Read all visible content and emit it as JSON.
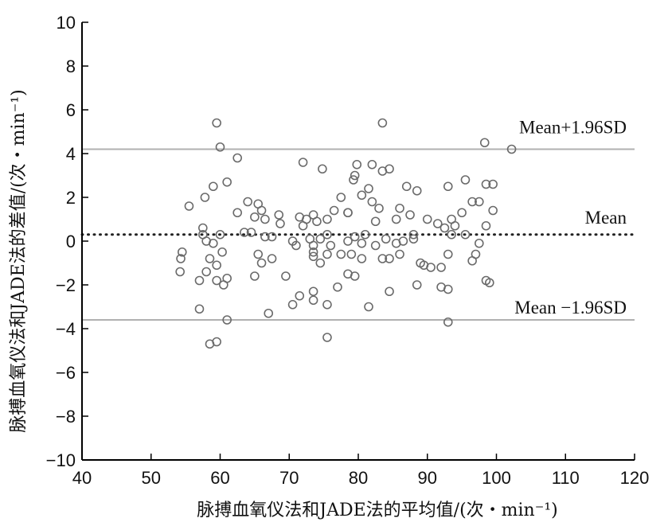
{
  "chart_data": {
    "type": "scatter",
    "title": "",
    "xlabel": "脉搏血氧仪法和JADE法的平均值/(次・min⁻¹)",
    "ylabel": "脉搏血氧仪法和JADE法的差值/(次・min⁻¹)",
    "xlim": [
      40,
      120
    ],
    "ylim": [
      -10,
      10
    ],
    "x_ticks": [
      "40",
      "50",
      "60",
      "70",
      "80",
      "90",
      "100",
      "110",
      "120"
    ],
    "y_ticks": [
      "10",
      "8",
      "6",
      "4",
      "2",
      "0",
      "−2",
      "−4",
      "−6",
      "−8",
      "−10"
    ],
    "grid": false,
    "reference_lines": [
      {
        "label": "Mean+1.96SD",
        "y": 4.2,
        "style": "solid"
      },
      {
        "label": "Mean",
        "y": 0.3,
        "style": "dotted"
      },
      {
        "label": "Mean −1.96SD",
        "y": -3.6,
        "style": "solid"
      }
    ],
    "points": [
      [
        59.5,
        5.4
      ],
      [
        60,
        4.3
      ],
      [
        62.5,
        3.8
      ],
      [
        83.5,
        5.4
      ],
      [
        98.3,
        4.5
      ],
      [
        102.2,
        4.2
      ],
      [
        72,
        3.6
      ],
      [
        74.8,
        3.3
      ],
      [
        79.8,
        3.5
      ],
      [
        82,
        3.5
      ],
      [
        79.5,
        3.0
      ],
      [
        79.3,
        2.8
      ],
      [
        83.5,
        3.2
      ],
      [
        84.5,
        3.3
      ],
      [
        95.5,
        2.8
      ],
      [
        99.5,
        2.6
      ],
      [
        98.5,
        2.6
      ],
      [
        93,
        2.5
      ],
      [
        61,
        2.7
      ],
      [
        59,
        2.5
      ],
      [
        57.8,
        2.0
      ],
      [
        55.5,
        1.6
      ],
      [
        64,
        1.8
      ],
      [
        65.5,
        1.7
      ],
      [
        66,
        1.4
      ],
      [
        65,
        1.1
      ],
      [
        66.5,
        1.0
      ],
      [
        62.5,
        1.3
      ],
      [
        68.5,
        1.2
      ],
      [
        68.7,
        0.8
      ],
      [
        71.5,
        1.1
      ],
      [
        72.5,
        1.0
      ],
      [
        73.5,
        1.2
      ],
      [
        72,
        0.7
      ],
      [
        74,
        0.9
      ],
      [
        76.5,
        1.4
      ],
      [
        75.5,
        1.0
      ],
      [
        77.5,
        2.0
      ],
      [
        78.5,
        1.3
      ],
      [
        78.5,
        1.3
      ],
      [
        80.5,
        2.1
      ],
      [
        81.5,
        2.4
      ],
      [
        82,
        1.8
      ],
      [
        83,
        1.5
      ],
      [
        82.5,
        0.9
      ],
      [
        86,
        1.5
      ],
      [
        85.5,
        1.0
      ],
      [
        87,
        2.5
      ],
      [
        88.5,
        2.3
      ],
      [
        87.5,
        1.2
      ],
      [
        90,
        1.0
      ],
      [
        91.5,
        0.8
      ],
      [
        92.5,
        0.6
      ],
      [
        93.5,
        1.0
      ],
      [
        95,
        1.3
      ],
      [
        96.5,
        1.8
      ],
      [
        97.5,
        1.8
      ],
      [
        99.5,
        1.4
      ],
      [
        98.5,
        0.7
      ],
      [
        57.5,
        0.6
      ],
      [
        57.5,
        0.3
      ],
      [
        58,
        0
      ],
      [
        59,
        -0.1
      ],
      [
        60,
        0.3
      ],
      [
        63.5,
        0.4
      ],
      [
        64.5,
        0.4
      ],
      [
        66.5,
        0.2
      ],
      [
        67.5,
        0.2
      ],
      [
        70.5,
        0
      ],
      [
        71,
        -0.2
      ],
      [
        73,
        0.1
      ],
      [
        73.5,
        -0.2
      ],
      [
        74.5,
        0.1
      ],
      [
        75.5,
        0.3
      ],
      [
        76,
        -0.2
      ],
      [
        78.5,
        0
      ],
      [
        79.5,
        0.2
      ],
      [
        80.5,
        -0.1
      ],
      [
        81,
        0.3
      ],
      [
        82.5,
        -0.2
      ],
      [
        84,
        0.1
      ],
      [
        85.5,
        -0.1
      ],
      [
        86.5,
        0
      ],
      [
        88,
        0.3
      ],
      [
        88,
        0.1
      ],
      [
        93.5,
        0.3
      ],
      [
        94,
        0.7
      ],
      [
        95.5,
        0.3
      ],
      [
        97.5,
        -0.1
      ],
      [
        54.5,
        -0.5
      ],
      [
        54.3,
        -0.8
      ],
      [
        54.2,
        -1.4
      ],
      [
        58.5,
        -0.8
      ],
      [
        59.5,
        -1.1
      ],
      [
        60.3,
        -0.5
      ],
      [
        58,
        -1.4
      ],
      [
        57,
        -1.8
      ],
      [
        59.5,
        -1.8
      ],
      [
        61,
        -1.7
      ],
      [
        60.5,
        -2.0
      ],
      [
        65.5,
        -0.6
      ],
      [
        66,
        -1.0
      ],
      [
        67.5,
        -0.8
      ],
      [
        65,
        -1.6
      ],
      [
        69.5,
        -1.6
      ],
      [
        73.5,
        -0.7
      ],
      [
        73.5,
        -0.5
      ],
      [
        74.5,
        -1.0
      ],
      [
        75.5,
        -0.6
      ],
      [
        77.5,
        -0.6
      ],
      [
        79,
        -0.6
      ],
      [
        78.5,
        -1.5
      ],
      [
        79.5,
        -1.6
      ],
      [
        77,
        -2.1
      ],
      [
        80.5,
        -0.8
      ],
      [
        83.5,
        -0.8
      ],
      [
        84.5,
        -0.8
      ],
      [
        86,
        -0.6
      ],
      [
        89,
        -1.0
      ],
      [
        89.5,
        -1.1
      ],
      [
        90.5,
        -1.2
      ],
      [
        92,
        -1.2
      ],
      [
        93,
        -0.6
      ],
      [
        96.5,
        -0.9
      ],
      [
        97,
        -0.6
      ],
      [
        88.5,
        -2.0
      ],
      [
        93,
        -2.2
      ],
      [
        92,
        -2.1
      ],
      [
        98.5,
        -1.8
      ],
      [
        99,
        -1.9
      ],
      [
        84.5,
        -2.3
      ],
      [
        71.5,
        -2.5
      ],
      [
        73.5,
        -2.3
      ],
      [
        73.5,
        -2.7
      ],
      [
        75.5,
        -2.9
      ],
      [
        70.5,
        -2.9
      ],
      [
        67,
        -3.3
      ],
      [
        57,
        -3.1
      ],
      [
        61,
        -3.6
      ],
      [
        93,
        -3.7
      ],
      [
        81.5,
        -3.0
      ],
      [
        75.5,
        -4.4
      ],
      [
        58.5,
        -4.7
      ],
      [
        59.5,
        -4.6
      ]
    ]
  }
}
